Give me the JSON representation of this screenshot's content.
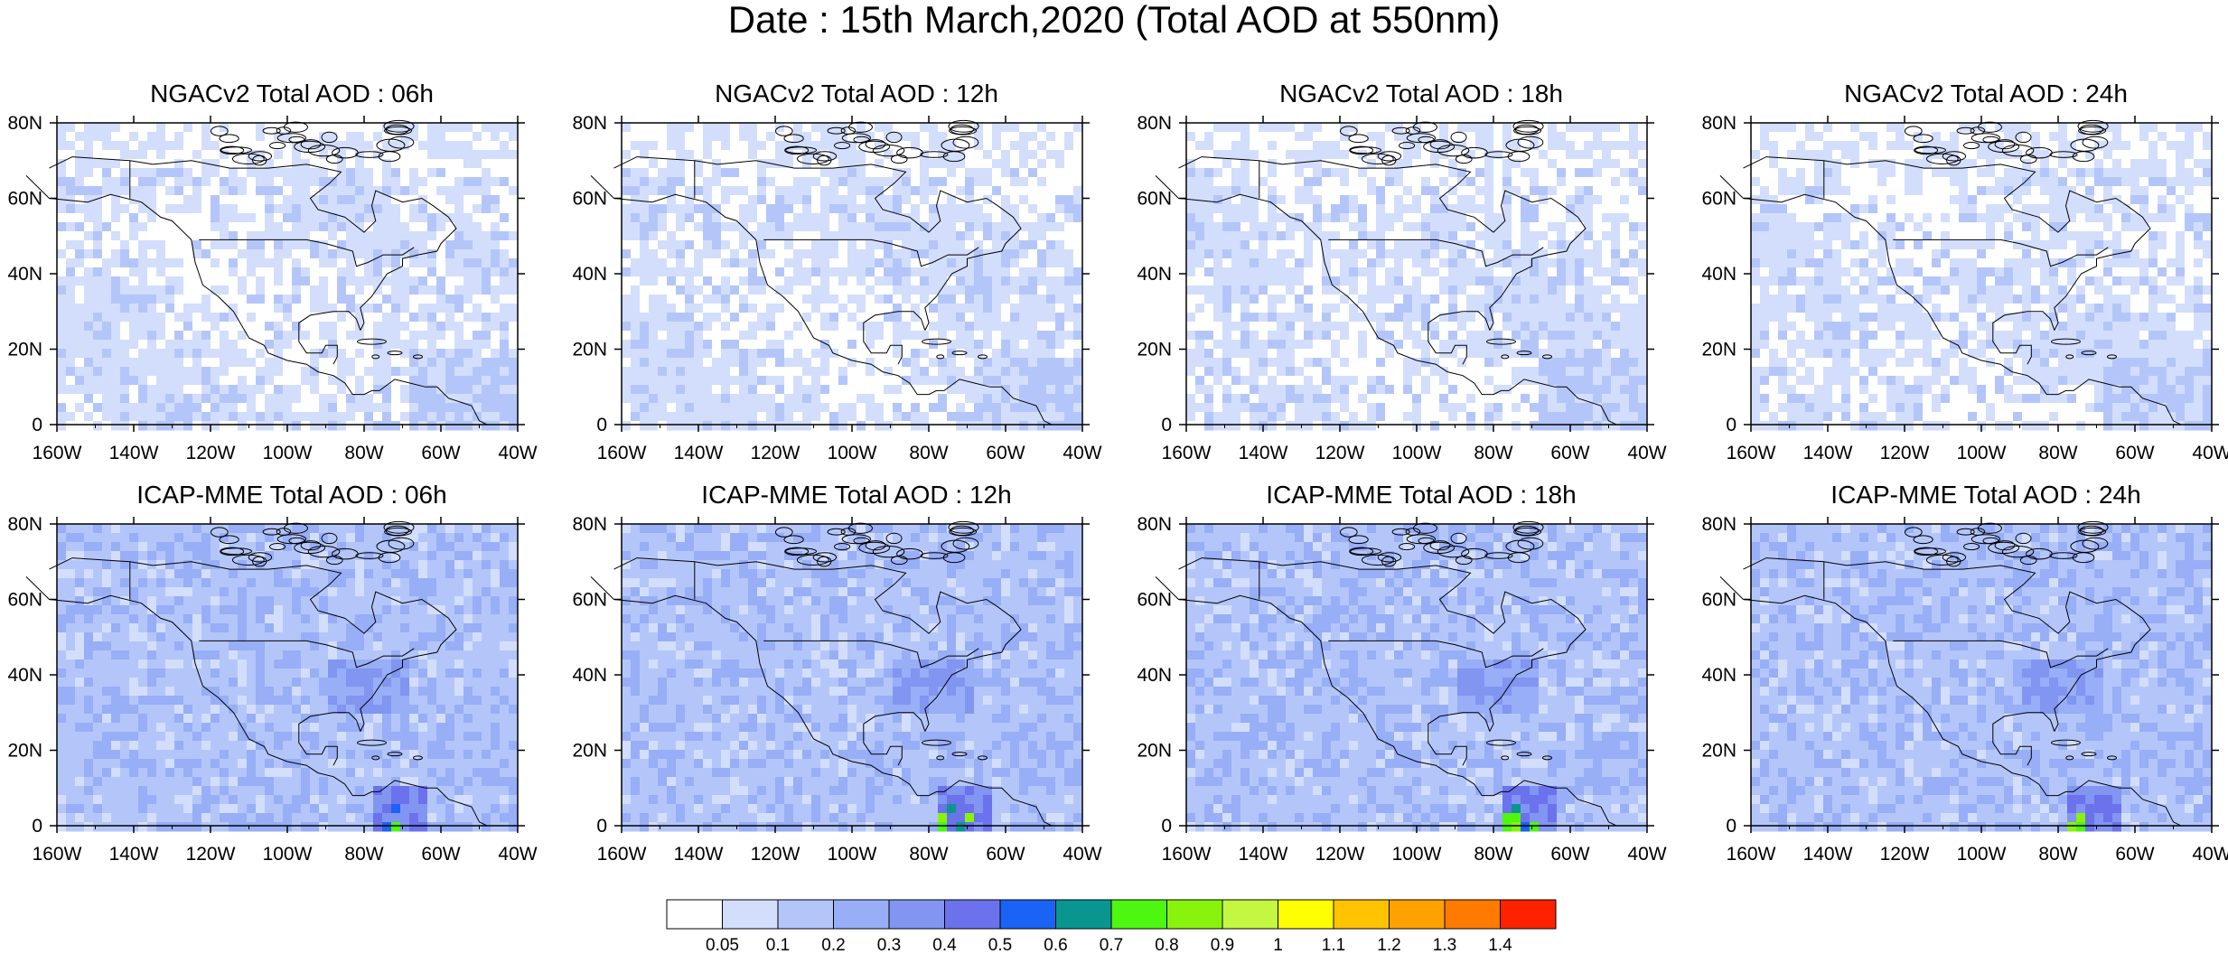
{
  "title": "Date : 15th March,2020 (Total AOD at 550nm)",
  "panels": [
    {
      "title": "NGACv2 Total AOD : 06h",
      "model": "NGACv2",
      "hour": 6
    },
    {
      "title": "NGACv2 Total AOD : 12h",
      "model": "NGACv2",
      "hour": 12
    },
    {
      "title": "NGACv2 Total AOD : 18h",
      "model": "NGACv2",
      "hour": 18
    },
    {
      "title": "NGACv2 Total AOD : 24h",
      "model": "NGACv2",
      "hour": 24
    },
    {
      "title": "ICAP-MME Total AOD : 06h",
      "model": "ICAP-MME",
      "hour": 6
    },
    {
      "title": "ICAP-MME Total AOD : 12h",
      "model": "ICAP-MME",
      "hour": 12
    },
    {
      "title": "ICAP-MME Total AOD : 18h",
      "model": "ICAP-MME",
      "hour": 18
    },
    {
      "title": "ICAP-MME Total AOD : 24h",
      "model": "ICAP-MME",
      "hour": 24
    }
  ],
  "chart_data": {
    "type": "heatmap",
    "x_ticks": [
      "160W",
      "140W",
      "120W",
      "100W",
      "80W",
      "60W",
      "40W"
    ],
    "y_ticks": [
      "0",
      "20N",
      "40N",
      "60N",
      "80N"
    ],
    "xlim": [
      -160,
      -40
    ],
    "ylim": [
      0,
      80
    ],
    "colorbar": {
      "labels": [
        "0.05",
        "0.1",
        "0.2",
        "0.3",
        "0.4",
        "0.5",
        "0.6",
        "0.7",
        "0.8",
        "0.9",
        "1",
        "1.1",
        "1.2",
        "1.3",
        "1.4"
      ],
      "colors": [
        "#ffffff",
        "#d3defc",
        "#b4c6f9",
        "#98aef6",
        "#8195f1",
        "#6b72eb",
        "#1b63f4",
        "#0a9690",
        "#4df70f",
        "#88f30c",
        "#c4f740",
        "#ffff00",
        "#ffc300",
        "#ffa200",
        "#ff7b00",
        "#ff2200"
      ]
    }
  }
}
